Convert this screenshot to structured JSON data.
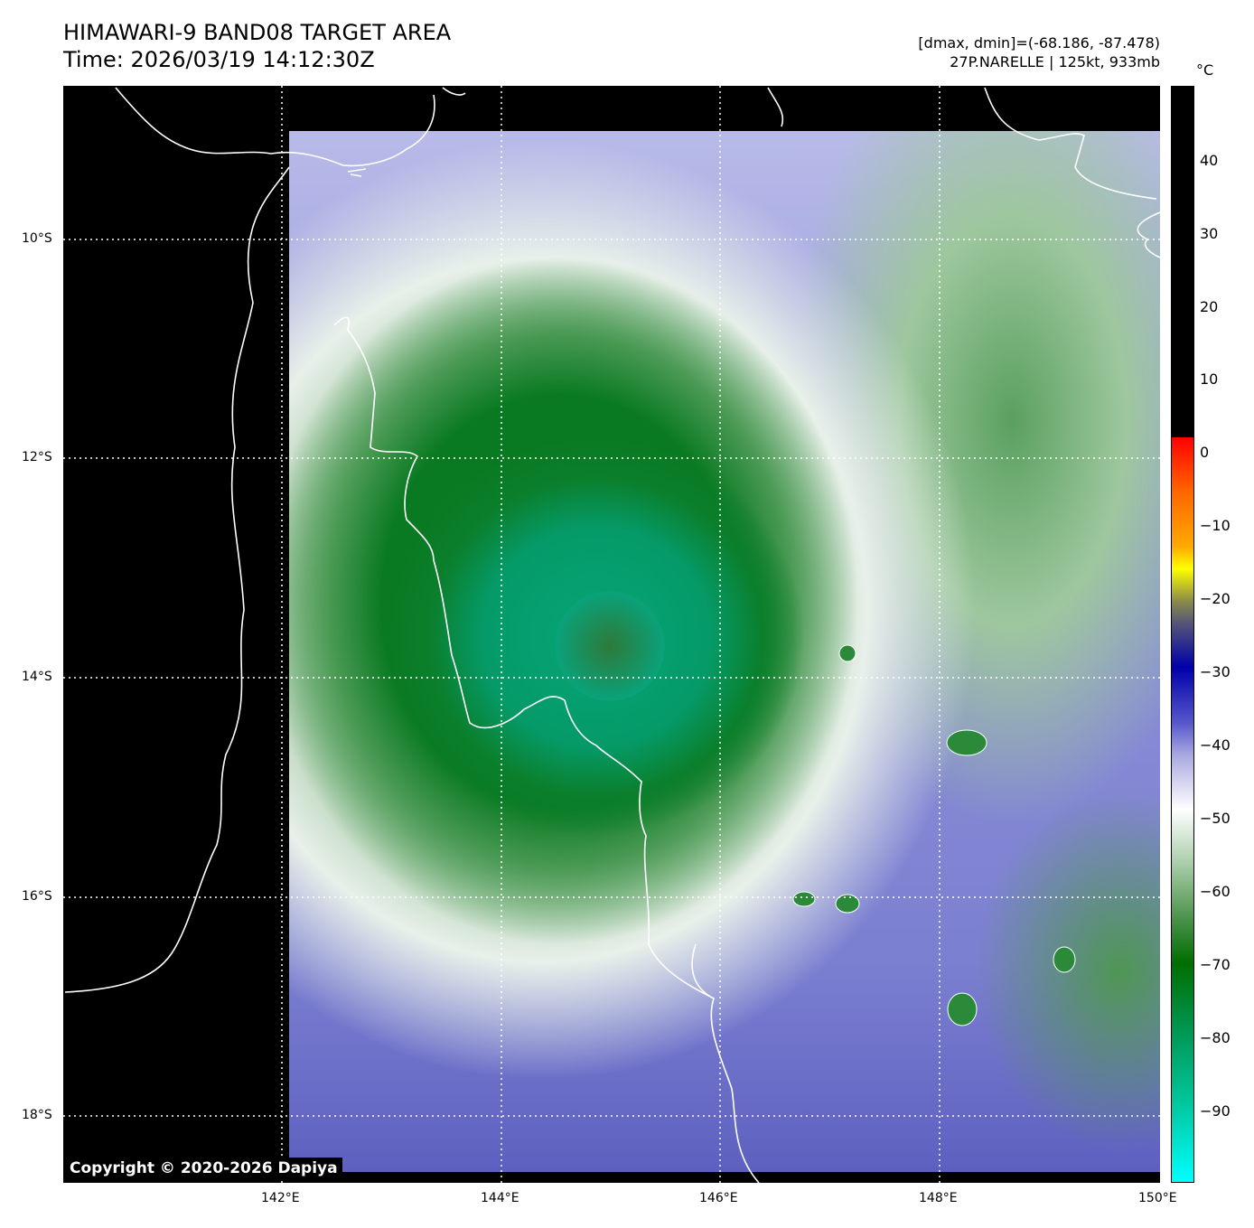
{
  "header": {
    "title": "HIMAWARI-9 BAND08 TARGET AREA",
    "time": "Time: 2026/03/19 14:12:30Z",
    "range": "[dmax, dmin]=(-68.186, -87.478)",
    "storm": "27P.NARELLE | 125kt, 933mb"
  },
  "colorbar": {
    "unit": "°C",
    "range": [
      -100,
      50
    ],
    "ticks": [
      "40",
      "30",
      "20",
      "10",
      "0",
      "−10",
      "−20",
      "−30",
      "−40",
      "−50",
      "−60",
      "−70",
      "−80",
      "−90"
    ]
  },
  "axes": {
    "lat_labels": [
      "10°S",
      "12°S",
      "14°S",
      "16°S",
      "18°S"
    ],
    "lon_labels": [
      "142°E",
      "144°E",
      "146°E",
      "148°E",
      "150°E"
    ],
    "lon_range": [
      140,
      150
    ],
    "lat_range": [
      -8.6,
      -18.6
    ]
  },
  "copyright": "Copyright © 2020-2026 Dapiya",
  "colors": {
    "background": "#000000",
    "grid": "#ffffff",
    "coast": "#ffffff"
  }
}
